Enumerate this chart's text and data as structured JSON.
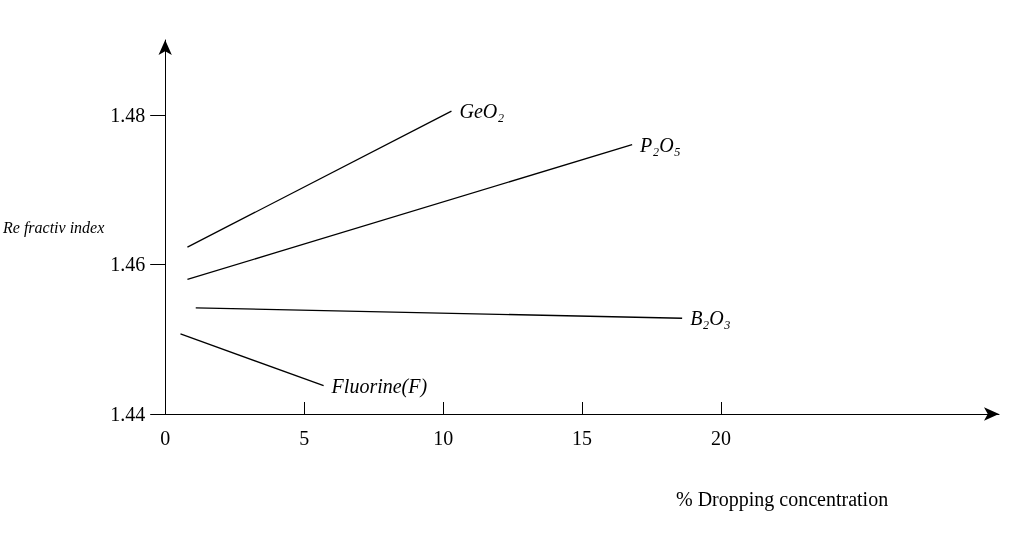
{
  "chart_data": {
    "type": "line",
    "xlabel": "% Dropping concentration",
    "ylabel": "Re fractiv index",
    "series": [
      {
        "name": "GeO₂",
        "color": "#000000",
        "x": [
          0.8,
          10.3
        ],
        "values": [
          1.4623,
          1.4805
        ]
      },
      {
        "name": "P₂O₅",
        "color": "#000000",
        "x": [
          0.8,
          16.8
        ],
        "values": [
          1.458,
          1.476
        ]
      },
      {
        "name": "B₂O₃",
        "color": "#000000",
        "x": [
          1.1,
          18.6
        ],
        "values": [
          1.4542,
          1.4528
        ]
      },
      {
        "name": "Fluorine(F)",
        "color": "#000000",
        "x": [
          0.55,
          5.7
        ],
        "values": [
          1.4507,
          1.4438
        ]
      }
    ],
    "xlim": [
      0,
      30
    ],
    "xticks": [
      0,
      5,
      10,
      15,
      20
    ],
    "ylim": [
      1.44,
      1.49
    ],
    "yticks": [
      1.44,
      1.46,
      1.48
    ],
    "grid": false,
    "legend": false,
    "marker": "none",
    "line_style": "solid"
  }
}
